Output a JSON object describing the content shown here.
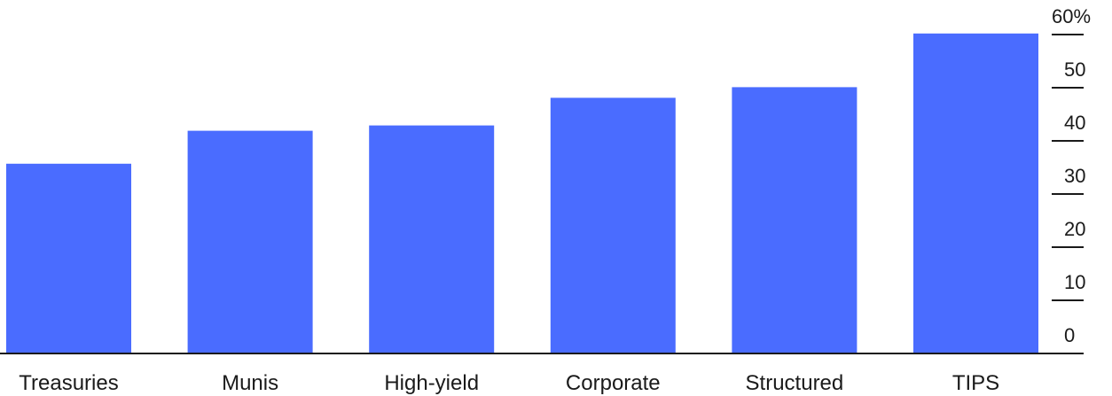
{
  "chart_data": {
    "type": "bar",
    "categories": [
      "Treasuries",
      "Munis",
      "High-yield",
      "Corporate",
      "Structured",
      "TIPS"
    ],
    "values": [
      35.7,
      41.9,
      42.9,
      48.1,
      50.1,
      60.2
    ],
    "title": "",
    "xlabel": "",
    "ylabel": "",
    "ylim": [
      0,
      63
    ],
    "y_ticks": [
      0,
      10,
      20,
      30,
      40,
      50,
      60
    ],
    "y_tick_labels": [
      "0",
      "10",
      "20",
      "30",
      "40",
      "50",
      "60%"
    ],
    "y_axis_position": "right",
    "grid": false,
    "colors": {
      "bar": "#4a6cff",
      "axis": "#1a1a1a",
      "text": "#1a1a1a"
    }
  }
}
